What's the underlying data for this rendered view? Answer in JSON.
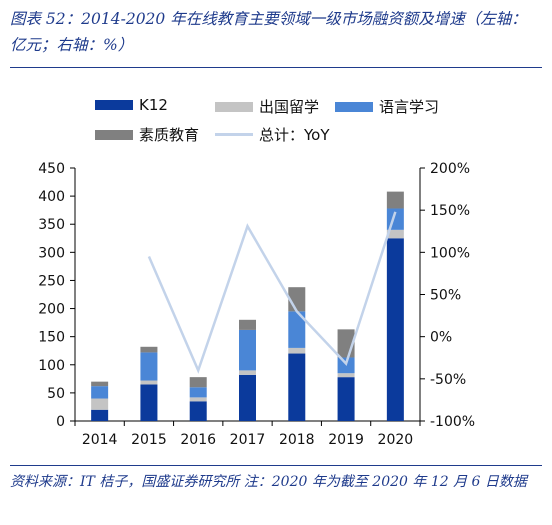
{
  "title": "图表 52：2014-2020 年在线教育主要领域一级市场融资额及增速（左轴：亿元；右轴：%）",
  "source": "资料来源：IT 桔子，国盛证券研究所 注：2020 年为截至 2020 年 12 月 6 日数据",
  "colors": {
    "k12": "#0b3a9c",
    "abroad": "#c4c4c4",
    "language": "#4a86d6",
    "quality": "#808080",
    "yoy": "#c3d3ea",
    "accent": "#1f3b8c"
  },
  "chart_data": {
    "type": "bar",
    "stacked": true,
    "categories": [
      "2014",
      "2015",
      "2016",
      "2017",
      "2018",
      "2019",
      "2020"
    ],
    "series": [
      {
        "name": "K12",
        "type": "bar",
        "values": [
          20,
          65,
          35,
          82,
          120,
          78,
          325
        ]
      },
      {
        "name": "出国留学",
        "type": "bar",
        "values": [
          20,
          7,
          7,
          8,
          10,
          7,
          15
        ]
      },
      {
        "name": "语言学习",
        "type": "bar",
        "values": [
          22,
          50,
          18,
          72,
          65,
          28,
          38
        ]
      },
      {
        "name": "素质教育",
        "type": "bar",
        "values": [
          8,
          10,
          18,
          18,
          43,
          50,
          30
        ]
      },
      {
        "name": "总计：YoY",
        "type": "line",
        "axis": "right",
        "values": [
          null,
          95,
          -40,
          131,
          30,
          -32,
          148
        ]
      }
    ],
    "y_left": {
      "min": 0,
      "max": 450,
      "ticks": [
        "0",
        "50",
        "100",
        "150",
        "200",
        "250",
        "300",
        "350",
        "400",
        "450"
      ]
    },
    "y_right": {
      "min": -100,
      "max": 200,
      "ticks": [
        "-100%",
        "-50%",
        "0%",
        "50%",
        "100%",
        "150%",
        "200%"
      ]
    },
    "legend_position": "top",
    "grid": false
  }
}
